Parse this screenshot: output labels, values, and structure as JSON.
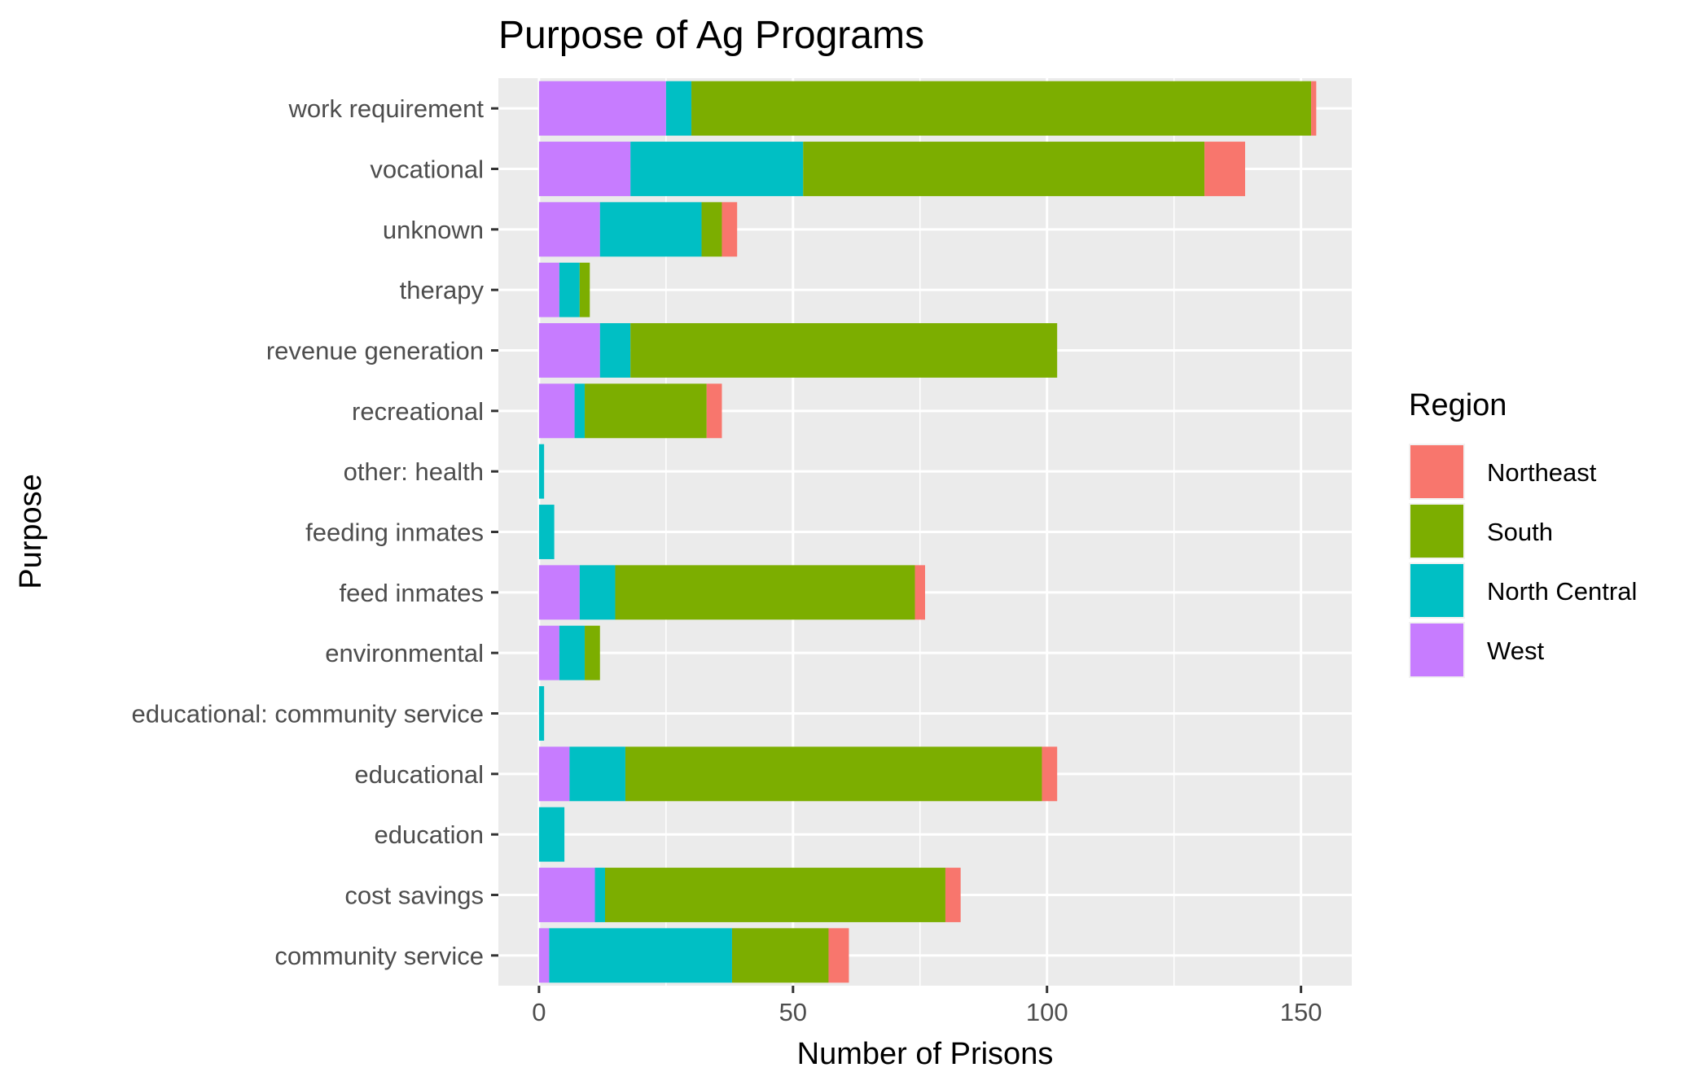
{
  "chart_data": {
    "type": "bar",
    "orientation": "horizontal",
    "stacked": true,
    "title": "Purpose of Ag Programs",
    "xlabel": "Number of Prisons",
    "ylabel": "Purpose",
    "xlim": [
      -8,
      160
    ],
    "x_ticks": [
      0,
      50,
      100,
      150
    ],
    "grid": true,
    "categories": [
      "community service",
      "cost savings",
      "education",
      "educational",
      "educational: community service",
      "environmental",
      "feed inmates",
      "feeding inmates",
      "other: health",
      "recreational",
      "revenue generation",
      "therapy",
      "unknown",
      "vocational",
      "work requirement"
    ],
    "series": [
      {
        "name": "West",
        "color": "#C77CFF",
        "values": [
          2,
          11,
          0,
          6,
          0,
          4,
          8,
          0,
          0,
          7,
          12,
          4,
          12,
          18,
          25
        ]
      },
      {
        "name": "North Central",
        "color": "#00BFC4",
        "values": [
          36,
          2,
          5,
          11,
          1,
          5,
          7,
          3,
          1,
          2,
          6,
          4,
          20,
          34,
          5
        ]
      },
      {
        "name": "South",
        "color": "#7CAE00",
        "values": [
          19,
          67,
          0,
          82,
          0,
          3,
          59,
          0,
          0,
          24,
          84,
          2,
          4,
          79,
          122
        ]
      },
      {
        "name": "Northeast",
        "color": "#F8766D",
        "values": [
          4,
          3,
          0,
          3,
          0,
          0,
          2,
          0,
          0,
          3,
          0,
          0,
          3,
          8,
          1
        ]
      }
    ],
    "legend": {
      "title": "Region",
      "position": "right",
      "order": [
        "Northeast",
        "South",
        "North Central",
        "West"
      ]
    }
  }
}
